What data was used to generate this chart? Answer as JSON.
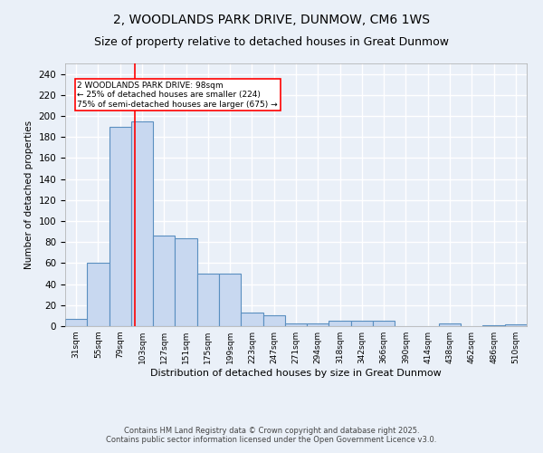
{
  "title_line1": "2, WOODLANDS PARK DRIVE, DUNMOW, CM6 1WS",
  "title_line2": "Size of property relative to detached houses in Great Dunmow",
  "xlabel": "Distribution of detached houses by size in Great Dunmow",
  "ylabel": "Number of detached properties",
  "bar_color": "#c8d8f0",
  "bar_edge_color": "#5a8fc0",
  "background_color": "#eaf0f8",
  "grid_color": "#ffffff",
  "categories": [
    "31sqm",
    "55sqm",
    "79sqm",
    "103sqm",
    "127sqm",
    "151sqm",
    "175sqm",
    "199sqm",
    "223sqm",
    "247sqm",
    "271sqm",
    "294sqm",
    "318sqm",
    "342sqm",
    "366sqm",
    "390sqm",
    "414sqm",
    "438sqm",
    "462sqm",
    "486sqm",
    "510sqm"
  ],
  "values": [
    7,
    60,
    190,
    195,
    86,
    84,
    50,
    50,
    13,
    10,
    3,
    3,
    5,
    5,
    5,
    0,
    0,
    3,
    0,
    1,
    2
  ],
  "red_line_x": 2.67,
  "annotation_text": "2 WOODLANDS PARK DRIVE: 98sqm\n← 25% of detached houses are smaller (224)\n75% of semi-detached houses are larger (675) →",
  "ylim": [
    0,
    250
  ],
  "yticks": [
    0,
    20,
    40,
    60,
    80,
    100,
    120,
    140,
    160,
    180,
    200,
    220,
    240
  ],
  "footer_line1": "Contains HM Land Registry data © Crown copyright and database right 2025.",
  "footer_line2": "Contains public sector information licensed under the Open Government Licence v3.0.",
  "title_fontsize": 10,
  "subtitle_fontsize": 9,
  "bar_width": 1.0
}
